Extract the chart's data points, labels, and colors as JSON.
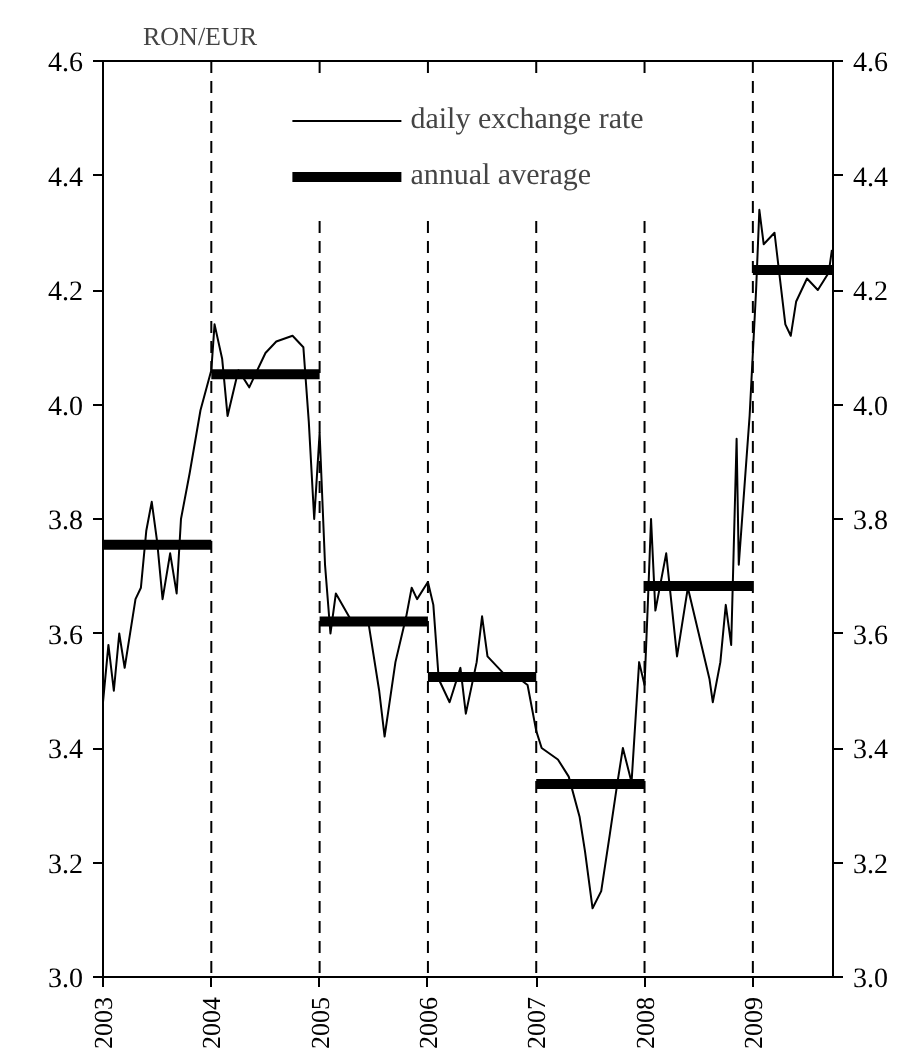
{
  "chart_data": {
    "type": "line",
    "ylabel": "RON/EUR",
    "xlim": [
      2003,
      2009.74
    ],
    "xticks": [
      2003,
      2004,
      2005,
      2006,
      2007,
      2008,
      2009
    ],
    "ylim": [
      3.0,
      4.6
    ],
    "yticks": [
      {
        "value": 3,
        "label": "3.0"
      },
      3.2,
      3.4,
      3.6,
      3.8,
      {
        "value": 4,
        "label": "4.0"
      },
      4.2,
      4.4,
      4.6
    ],
    "y2lim": [
      3.0,
      4.6
    ],
    "y2ticks": [
      {
        "value": 3,
        "label": "3.0"
      },
      3.2,
      3.4,
      3.6,
      3.8,
      {
        "value": 4,
        "label": "4.0"
      },
      4.2,
      4.4,
      4.6
    ],
    "grid": false,
    "legend": "top",
    "marker": "none",
    "series": [
      {
        "name": "daily exchange rate",
        "color": "#000000",
        "line_style": "solid",
        "x": [
          2003,
          2003.05,
          2003.1,
          2003.15,
          2003.2,
          2003.3,
          2003.35,
          2003.4,
          2003.45,
          2003.5,
          2003.55,
          2003.62,
          2003.68,
          2003.72,
          2003.8,
          2003.9,
          2004.0,
          2004.03,
          2004.1,
          2004.15,
          2004.25,
          2004.35,
          2004.5,
          2004.6,
          2004.75,
          2004.85,
          2004.9,
          2004.95,
          2005.0,
          2005.05,
          2005.1,
          2005.15,
          2005.3,
          2005.45,
          2005.55,
          2005.6,
          2005.7,
          2005.8,
          2005.85,
          2005.9,
          2006.0,
          2006.05,
          2006.1,
          2006.2,
          2006.3,
          2006.35,
          2006.45,
          2006.5,
          2006.55,
          2006.7,
          2006.85,
          2006.92,
          2007.0,
          2007.05,
          2007.2,
          2007.3,
          2007.4,
          2007.45,
          2007.52,
          2007.6,
          2007.68,
          2007.75,
          2007.8,
          2007.88,
          2007.95,
          2008.0,
          2008.03,
          2008.06,
          2008.1,
          2008.2,
          2008.3,
          2008.4,
          2008.5,
          2008.6,
          2008.63,
          2008.7,
          2008.75,
          2008.8,
          2008.85,
          2008.87,
          2008.92,
          2008.97,
          2009.03,
          2009.06,
          2009.1,
          2009.2,
          2009.25,
          2009.3,
          2009.35,
          2009.4,
          2009.5,
          2009.6,
          2009.7,
          2009.73
        ],
        "values": [
          3.48,
          3.58,
          3.5,
          3.6,
          3.54,
          3.66,
          3.68,
          3.78,
          3.83,
          3.76,
          3.66,
          3.74,
          3.67,
          3.8,
          3.88,
          3.99,
          4.06,
          4.14,
          4.08,
          3.98,
          4.06,
          4.03,
          4.09,
          4.11,
          4.12,
          4.1,
          3.97,
          3.8,
          3.95,
          3.72,
          3.6,
          3.67,
          3.62,
          3.62,
          3.5,
          3.42,
          3.55,
          3.63,
          3.68,
          3.66,
          3.69,
          3.65,
          3.52,
          3.48,
          3.54,
          3.46,
          3.55,
          3.63,
          3.56,
          3.53,
          3.52,
          3.51,
          3.43,
          3.4,
          3.38,
          3.35,
          3.28,
          3.22,
          3.12,
          3.15,
          3.25,
          3.34,
          3.4,
          3.34,
          3.55,
          3.51,
          3.65,
          3.8,
          3.64,
          3.74,
          3.56,
          3.68,
          3.6,
          3.52,
          3.48,
          3.55,
          3.65,
          3.58,
          3.94,
          3.72,
          3.85,
          3.98,
          4.2,
          4.34,
          4.28,
          4.3,
          4.22,
          4.14,
          4.12,
          4.18,
          4.22,
          4.2,
          4.23,
          4.27
        ]
      },
      {
        "name": "annual average",
        "color": "#000000",
        "line_style": "solid",
        "x": [
          2003,
          2004
        ],
        "values": [
          3.755,
          3.755
        ]
      },
      {
        "color": "#000000",
        "line_style": "solid",
        "x": [
          2004,
          2005
        ],
        "values": [
          4.053,
          4.053
        ]
      },
      {
        "color": "#000000",
        "line_style": "solid",
        "x": [
          2005,
          2006
        ],
        "values": [
          3.621,
          3.621
        ]
      },
      {
        "color": "#000000",
        "line_style": "solid",
        "x": [
          2006,
          2007
        ],
        "values": [
          3.524,
          3.524
        ]
      },
      {
        "color": "#000000",
        "line_style": "solid",
        "x": [
          2007,
          2008
        ],
        "values": [
          3.337,
          3.337
        ]
      },
      {
        "color": "#000000",
        "line_style": "solid",
        "x": [
          2008,
          2009
        ],
        "values": [
          3.683,
          3.683
        ]
      },
      {
        "color": "#000000",
        "line_style": "solid",
        "x": [
          2009,
          2009.74
        ],
        "values": [
          4.235,
          4.235
        ]
      }
    ],
    "ref_lines": [
      {
        "axis": "x",
        "value": 2004,
        "line_style": "dashed"
      },
      {
        "axis": "x",
        "value": 2005,
        "line_style": "dashed"
      },
      {
        "axis": "x",
        "value": 2006,
        "line_style": "dashed"
      },
      {
        "axis": "x",
        "value": 2007,
        "line_style": "dashed"
      },
      {
        "axis": "x",
        "value": 2008,
        "line_style": "dashed"
      },
      {
        "axis": "x",
        "value": 2009,
        "line_style": "dashed"
      }
    ]
  }
}
